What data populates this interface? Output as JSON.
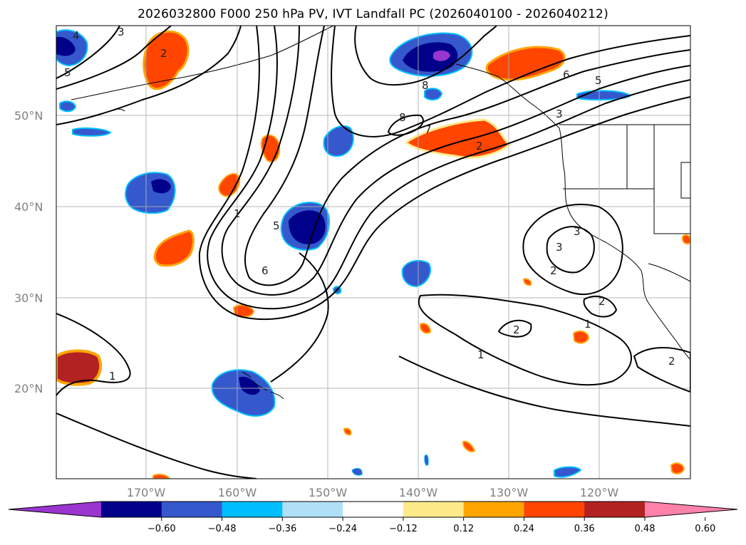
{
  "title": "2026032800 F000 250 hPa PV, IVT Landfall PC (2026040100 - 2026040212)",
  "lat_labels": [
    "50°N",
    "40°N",
    "30°N",
    "20°N"
  ],
  "lon_labels": [
    "170°W",
    "160°W",
    "150°W",
    "140°W",
    "130°W",
    "120°W"
  ],
  "colorbar": {
    "ticks": [
      "−0.60",
      "−0.48",
      "−0.36",
      "−0.24",
      "−0.12",
      "0.12",
      "0.24",
      "0.36",
      "0.48",
      "0.60"
    ],
    "colors": [
      "#9a35d0",
      "#00008b",
      "#3558cc",
      "#00bfff",
      "#b0e0f8",
      "#ffffff",
      "#ffea8a",
      "#ffa500",
      "#ff4500",
      "#b22222",
      "#ff82aa"
    ]
  },
  "contour_labels": [
    "4",
    "3",
    "5",
    "2",
    "8",
    "6",
    "5",
    "3",
    "7",
    "8",
    "2",
    "1",
    "5",
    "6",
    "3",
    "2",
    "2",
    "1",
    "2",
    "1",
    "1",
    "2",
    "3"
  ]
}
